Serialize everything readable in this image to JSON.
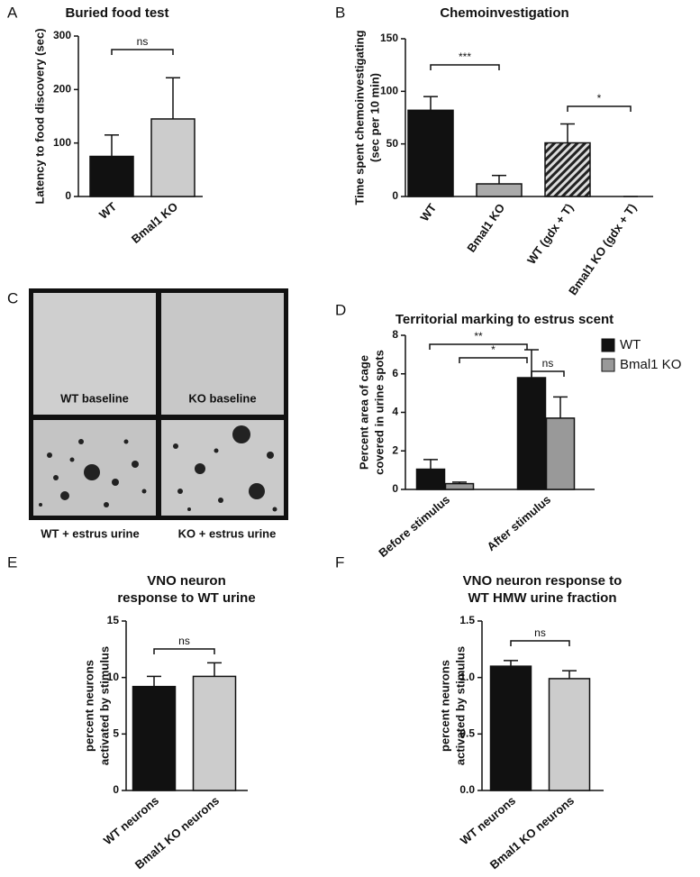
{
  "chart_data": [
    {
      "type": "bar",
      "panel": "A",
      "title": "Buried food test",
      "ylabel": [
        "Latency to food discovery (sec)"
      ],
      "categories": [
        "WT",
        "Bmal1 KO"
      ],
      "values": [
        75,
        145
      ],
      "errors": [
        40,
        77
      ],
      "colors": [
        "#111111",
        "#cccccc"
      ],
      "ylim": [
        0,
        300
      ],
      "yticks": [
        0,
        100,
        200,
        300
      ],
      "annotations": [
        "ns"
      ]
    },
    {
      "type": "bar",
      "panel": "B",
      "title": "Chemoinvestigation",
      "ylabel": [
        "Time spent chemoinvestigating",
        "(sec per 10 min)"
      ],
      "categories": [
        "WT",
        "Bmal1 KO",
        "WT (gdx + T)",
        "Bmal1 KO (gdx + T)"
      ],
      "values": [
        82,
        12,
        51,
        0
      ],
      "errors": [
        13,
        8,
        18,
        0
      ],
      "colors": [
        "#111111",
        "#aaaaaa",
        "#555555",
        "#cccccc"
      ],
      "hatched": [
        false,
        false,
        true,
        false
      ],
      "ylim": [
        0,
        150
      ],
      "yticks": [
        0,
        50,
        100,
        150
      ],
      "annotations": [
        "***",
        "*"
      ]
    },
    {
      "type": "grouped_bar",
      "panel": "D",
      "title": "Territorial marking to estrus scent",
      "ylabel": [
        "Percent area of cage",
        "covered in urine spots"
      ],
      "categories": [
        "Before stimulus",
        "After stimulus"
      ],
      "series": [
        {
          "name": "WT",
          "color": "#111111",
          "values": [
            1.05,
            5.8
          ],
          "errors": [
            0.5,
            1.45
          ]
        },
        {
          "name": "Bmal1 KO",
          "color": "#999999",
          "values": [
            0.3,
            3.7
          ],
          "errors": [
            0.08,
            1.1
          ]
        }
      ],
      "ylim": [
        0,
        8
      ],
      "yticks": [
        0,
        2,
        4,
        6,
        8
      ],
      "annotations": [
        "**",
        "*",
        "ns"
      ],
      "legend": "right"
    },
    {
      "type": "bar",
      "panel": "E",
      "title": [
        "VNO neuron",
        "response to WT urine"
      ],
      "ylabel": [
        "percent neurons",
        "activated by stimulus"
      ],
      "categories": [
        "WT neurons",
        "Bmal1 KO neurons"
      ],
      "values": [
        9.2,
        10.1
      ],
      "errors": [
        0.9,
        1.2
      ],
      "colors": [
        "#111111",
        "#cccccc"
      ],
      "ylim": [
        0,
        15
      ],
      "yticks": [
        0,
        5,
        10,
        15
      ],
      "annotations": [
        "ns"
      ]
    },
    {
      "type": "bar",
      "panel": "F",
      "title": [
        "VNO neuron response to",
        "WT HMW urine fraction"
      ],
      "ylabel": [
        "percent neurons",
        "activated by stimulus"
      ],
      "categories": [
        "WT neurons",
        "Bmal1 KO neurons"
      ],
      "values": [
        1.1,
        0.99
      ],
      "errors": [
        0.05,
        0.07
      ],
      "colors": [
        "#111111",
        "#cccccc"
      ],
      "ylim": [
        0,
        1.5
      ],
      "yticks": [
        {
          "value": 0,
          "label": "0.0"
        },
        0.5,
        {
          "value": 1,
          "label": "1.0"
        },
        1.5
      ],
      "annotations": [
        "ns"
      ]
    }
  ],
  "image_panel": {
    "panel": "C",
    "labels": [
      "WT baseline",
      "KO baseline",
      "WT + estrus urine",
      "KO + estrus urine"
    ]
  }
}
